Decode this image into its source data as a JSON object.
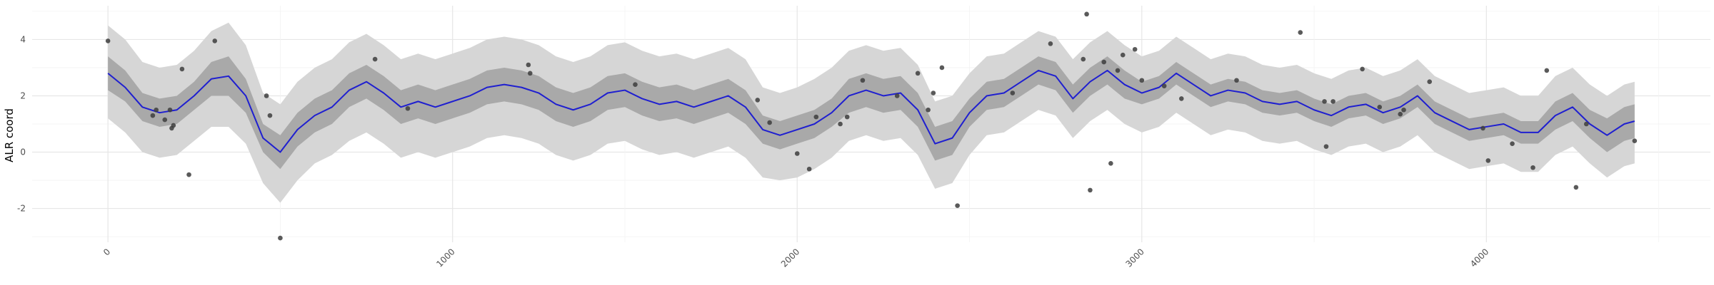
{
  "chart_data": {
    "type": "line",
    "title": "",
    "xlabel": "",
    "ylabel": "ALR coord",
    "xlim": [
      -220,
      4650
    ],
    "ylim": [
      -3.2,
      5.2
    ],
    "x_ticks": [
      0,
      1000,
      2000,
      3000,
      4000
    ],
    "y_ticks": [
      -2,
      0,
      2,
      4
    ],
    "grid": true,
    "legend": "none",
    "colors": {
      "line": "#1f1fd0",
      "inner_band": "#a9a9a9",
      "outer_band": "#d6d6d6",
      "points": "#3d3d3d"
    },
    "series": [
      {
        "type": "line",
        "x": [
          0,
          50,
          100,
          150,
          200,
          250,
          300,
          350,
          400,
          450,
          500,
          550,
          600,
          650,
          700,
          750,
          800,
          850,
          900,
          950,
          1000,
          1050,
          1100,
          1150,
          1200,
          1250,
          1300,
          1350,
          1400,
          1450,
          1500,
          1550,
          1600,
          1650,
          1700,
          1750,
          1800,
          1850,
          1900,
          1950,
          2000,
          2050,
          2100,
          2150,
          2200,
          2250,
          2300,
          2350,
          2400,
          2450,
          2500,
          2550,
          2600,
          2650,
          2700,
          2750,
          2800,
          2850,
          2900,
          2950,
          3000,
          3050,
          3100,
          3150,
          3200,
          3250,
          3300,
          3350,
          3400,
          3450,
          3500,
          3550,
          3600,
          3650,
          3700,
          3750,
          3800,
          3850,
          3900,
          3950,
          4000,
          4050,
          4100,
          4150,
          4200,
          4250,
          4300,
          4350,
          4400,
          4430
        ],
        "y": [
          2.8,
          2.3,
          1.6,
          1.4,
          1.5,
          2.0,
          2.6,
          2.7,
          2.0,
          0.5,
          0.0,
          0.8,
          1.3,
          1.6,
          2.2,
          2.5,
          2.1,
          1.6,
          1.8,
          1.6,
          1.8,
          2.0,
          2.3,
          2.4,
          2.3,
          2.1,
          1.7,
          1.5,
          1.7,
          2.1,
          2.2,
          1.9,
          1.7,
          1.8,
          1.6,
          1.8,
          2.0,
          1.6,
          0.8,
          0.6,
          0.8,
          1.0,
          1.4,
          2.0,
          2.2,
          2.0,
          2.1,
          1.5,
          0.3,
          0.5,
          1.4,
          2.0,
          2.1,
          2.5,
          2.9,
          2.7,
          1.9,
          2.5,
          2.9,
          2.4,
          2.1,
          2.3,
          2.8,
          2.4,
          2.0,
          2.2,
          2.1,
          1.8,
          1.7,
          1.8,
          1.5,
          1.3,
          1.6,
          1.7,
          1.4,
          1.6,
          2.0,
          1.4,
          1.1,
          0.8,
          0.9,
          1.0,
          0.7,
          0.7,
          1.3,
          1.6,
          1.0,
          0.6,
          1.0,
          1.1
        ]
      },
      {
        "type": "band",
        "level": "inner",
        "x": [
          0,
          50,
          100,
          150,
          200,
          250,
          300,
          350,
          400,
          450,
          500,
          550,
          600,
          650,
          700,
          750,
          800,
          850,
          900,
          950,
          1000,
          1050,
          1100,
          1150,
          1200,
          1250,
          1300,
          1350,
          1400,
          1450,
          1500,
          1550,
          1600,
          1650,
          1700,
          1750,
          1800,
          1850,
          1900,
          1950,
          2000,
          2050,
          2100,
          2150,
          2200,
          2250,
          2300,
          2350,
          2400,
          2450,
          2500,
          2550,
          2600,
          2650,
          2700,
          2750,
          2800,
          2850,
          2900,
          2950,
          3000,
          3050,
          3100,
          3150,
          3200,
          3250,
          3300,
          3350,
          3400,
          3450,
          3500,
          3550,
          3600,
          3650,
          3700,
          3750,
          3800,
          3850,
          3900,
          3950,
          4000,
          4050,
          4100,
          4150,
          4200,
          4250,
          4300,
          4350,
          4400,
          4430
        ],
        "ymin": [
          2.2,
          1.8,
          1.1,
          0.9,
          1.0,
          1.5,
          2.0,
          2.0,
          1.4,
          0.0,
          -0.6,
          0.2,
          0.7,
          1.0,
          1.6,
          1.9,
          1.5,
          1.0,
          1.2,
          1.0,
          1.2,
          1.4,
          1.7,
          1.8,
          1.7,
          1.5,
          1.1,
          0.9,
          1.1,
          1.5,
          1.6,
          1.3,
          1.1,
          1.2,
          1.0,
          1.2,
          1.4,
          1.0,
          0.3,
          0.1,
          0.3,
          0.5,
          0.9,
          1.4,
          1.6,
          1.4,
          1.5,
          0.9,
          -0.3,
          -0.1,
          0.9,
          1.5,
          1.6,
          2.0,
          2.4,
          2.2,
          1.4,
          2.0,
          2.4,
          1.9,
          1.7,
          1.9,
          2.4,
          2.0,
          1.6,
          1.8,
          1.7,
          1.4,
          1.3,
          1.4,
          1.1,
          0.9,
          1.2,
          1.3,
          1.0,
          1.2,
          1.6,
          1.0,
          0.7,
          0.4,
          0.5,
          0.6,
          0.3,
          0.3,
          0.8,
          1.1,
          0.5,
          0.0,
          0.4,
          0.5
        ],
        "ymax": [
          3.4,
          2.9,
          2.1,
          1.9,
          2.0,
          2.5,
          3.2,
          3.4,
          2.6,
          1.0,
          0.6,
          1.4,
          1.9,
          2.2,
          2.8,
          3.1,
          2.7,
          2.2,
          2.4,
          2.2,
          2.4,
          2.6,
          2.9,
          3.0,
          2.9,
          2.7,
          2.3,
          2.1,
          2.3,
          2.7,
          2.8,
          2.5,
          2.3,
          2.4,
          2.2,
          2.4,
          2.6,
          2.2,
          1.3,
          1.1,
          1.3,
          1.5,
          1.9,
          2.6,
          2.8,
          2.6,
          2.7,
          2.1,
          0.9,
          1.1,
          1.9,
          2.5,
          2.6,
          3.0,
          3.4,
          3.2,
          2.4,
          3.0,
          3.4,
          2.9,
          2.5,
          2.7,
          3.2,
          2.8,
          2.4,
          2.6,
          2.5,
          2.2,
          2.1,
          2.2,
          1.9,
          1.7,
          2.0,
          2.1,
          1.8,
          2.0,
          2.4,
          1.8,
          1.5,
          1.2,
          1.3,
          1.4,
          1.1,
          1.1,
          1.8,
          2.1,
          1.5,
          1.2,
          1.6,
          1.7
        ]
      },
      {
        "type": "band",
        "level": "outer",
        "x": [
          0,
          50,
          100,
          150,
          200,
          250,
          300,
          350,
          400,
          450,
          500,
          550,
          600,
          650,
          700,
          750,
          800,
          850,
          900,
          950,
          1000,
          1050,
          1100,
          1150,
          1200,
          1250,
          1300,
          1350,
          1400,
          1450,
          1500,
          1550,
          1600,
          1650,
          1700,
          1750,
          1800,
          1850,
          1900,
          1950,
          2000,
          2050,
          2100,
          2150,
          2200,
          2250,
          2300,
          2350,
          2400,
          2450,
          2500,
          2550,
          2600,
          2650,
          2700,
          2750,
          2800,
          2850,
          2900,
          2950,
          3000,
          3050,
          3100,
          3150,
          3200,
          3250,
          3300,
          3350,
          3400,
          3450,
          3500,
          3550,
          3600,
          3650,
          3700,
          3750,
          3800,
          3850,
          3900,
          3950,
          4000,
          4050,
          4100,
          4150,
          4200,
          4250,
          4300,
          4350,
          4400,
          4430
        ],
        "ymin": [
          1.2,
          0.7,
          0.0,
          -0.2,
          -0.1,
          0.4,
          0.9,
          0.9,
          0.3,
          -1.1,
          -1.8,
          -1.0,
          -0.4,
          -0.1,
          0.4,
          0.7,
          0.3,
          -0.2,
          0.0,
          -0.2,
          0.0,
          0.2,
          0.5,
          0.6,
          0.5,
          0.3,
          -0.1,
          -0.3,
          -0.1,
          0.3,
          0.4,
          0.1,
          -0.1,
          0.0,
          -0.2,
          0.0,
          0.2,
          -0.2,
          -0.9,
          -1.0,
          -0.9,
          -0.6,
          -0.2,
          0.4,
          0.6,
          0.4,
          0.5,
          -0.1,
          -1.3,
          -1.1,
          -0.1,
          0.6,
          0.7,
          1.1,
          1.5,
          1.3,
          0.5,
          1.1,
          1.5,
          1.0,
          0.7,
          0.9,
          1.4,
          1.0,
          0.6,
          0.8,
          0.7,
          0.4,
          0.3,
          0.4,
          0.1,
          -0.1,
          0.2,
          0.3,
          0.0,
          0.2,
          0.6,
          0.0,
          -0.3,
          -0.6,
          -0.5,
          -0.4,
          -0.7,
          -0.7,
          -0.1,
          0.2,
          -0.4,
          -0.9,
          -0.5,
          -0.4
        ],
        "ymax": [
          4.5,
          4.0,
          3.2,
          3.0,
          3.1,
          3.6,
          4.3,
          4.6,
          3.8,
          2.1,
          1.7,
          2.5,
          3.0,
          3.3,
          3.9,
          4.2,
          3.8,
          3.3,
          3.5,
          3.3,
          3.5,
          3.7,
          4.0,
          4.1,
          4.0,
          3.8,
          3.4,
          3.2,
          3.4,
          3.8,
          3.9,
          3.6,
          3.4,
          3.5,
          3.3,
          3.5,
          3.7,
          3.3,
          2.3,
          2.1,
          2.3,
          2.6,
          3.0,
          3.6,
          3.8,
          3.6,
          3.7,
          3.1,
          1.8,
          2.0,
          2.8,
          3.4,
          3.5,
          3.9,
          4.3,
          4.1,
          3.3,
          3.9,
          4.3,
          3.8,
          3.4,
          3.6,
          4.1,
          3.7,
          3.3,
          3.5,
          3.4,
          3.1,
          3.0,
          3.1,
          2.8,
          2.6,
          2.9,
          3.0,
          2.7,
          2.9,
          3.3,
          2.7,
          2.4,
          2.1,
          2.2,
          2.3,
          2.0,
          2.0,
          2.7,
          3.0,
          2.4,
          2.0,
          2.4,
          2.5
        ]
      },
      {
        "type": "scatter",
        "x": [
          0,
          130,
          140,
          165,
          180,
          185,
          190,
          215,
          235,
          310,
          460,
          470,
          500,
          775,
          870,
          1220,
          1225,
          1530,
          1885,
          1920,
          2000,
          2035,
          2055,
          2125,
          2145,
          2190,
          2290,
          2350,
          2380,
          2395,
          2420,
          2465,
          2625,
          2735,
          2830,
          2840,
          2850,
          2890,
          2910,
          2930,
          2945,
          2980,
          3000,
          3065,
          3115,
          3275,
          3460,
          3530,
          3535,
          3555,
          3640,
          3690,
          3750,
          3760,
          3835,
          3990,
          4005,
          4075,
          4135,
          4175,
          4260,
          4290,
          4430
        ],
        "y": [
          3.95,
          1.3,
          1.5,
          1.15,
          1.5,
          0.85,
          0.95,
          2.95,
          -0.8,
          3.95,
          2.0,
          1.3,
          -3.05,
          3.3,
          1.55,
          3.1,
          2.8,
          2.4,
          1.85,
          1.05,
          -0.05,
          -0.6,
          1.25,
          1.0,
          1.25,
          2.55,
          2.0,
          2.8,
          1.5,
          2.1,
          3.0,
          -1.9,
          2.1,
          3.85,
          3.3,
          4.9,
          -1.35,
          3.2,
          -0.4,
          2.9,
          3.45,
          3.65,
          2.55,
          2.35,
          1.9,
          2.55,
          4.25,
          1.8,
          0.2,
          1.8,
          2.95,
          1.6,
          1.35,
          1.5,
          2.5,
          0.85,
          -0.3,
          0.3,
          -0.55,
          2.9,
          -1.25,
          1.0,
          0.4
        ]
      }
    ]
  }
}
